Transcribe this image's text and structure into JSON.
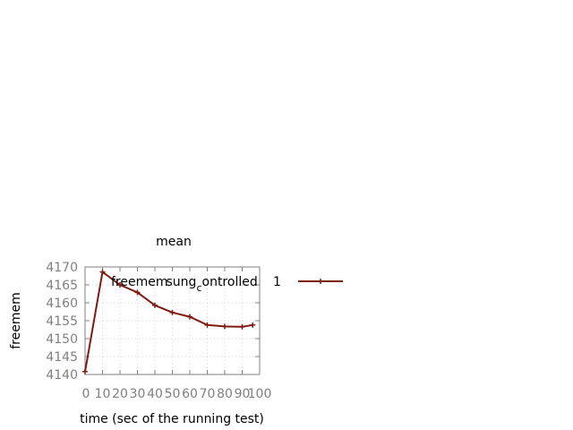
{
  "chart_data": {
    "type": "line",
    "title": "mean",
    "xlabel": "time (sec of the running test)",
    "ylabel": "freemem",
    "xlim": [
      0,
      100
    ],
    "ylim": [
      4140,
      4170
    ],
    "x_ticks": [
      0,
      10,
      20,
      30,
      40,
      50,
      60,
      70,
      80,
      90,
      100
    ],
    "y_ticks": [
      4140,
      4145,
      4150,
      4155,
      4160,
      4165,
      4170
    ],
    "grid": true,
    "legend_position": "top-right",
    "series": [
      {
        "name": "freemem",
        "name_sub_parts": [
          "freemem",
          "sung",
          "c",
          "ontrolled"
        ],
        "name_suffix": "1",
        "color": "#7f1a12",
        "marker": "plus",
        "x": [
          0,
          10,
          20,
          30,
          40,
          50,
          60,
          70,
          80,
          90,
          96
        ],
        "y": [
          4140.8,
          4168.6,
          4165.0,
          4162.9,
          4159.3,
          4157.3,
          4156.1,
          4153.8,
          4153.4,
          4153.3,
          4153.8
        ]
      }
    ]
  }
}
